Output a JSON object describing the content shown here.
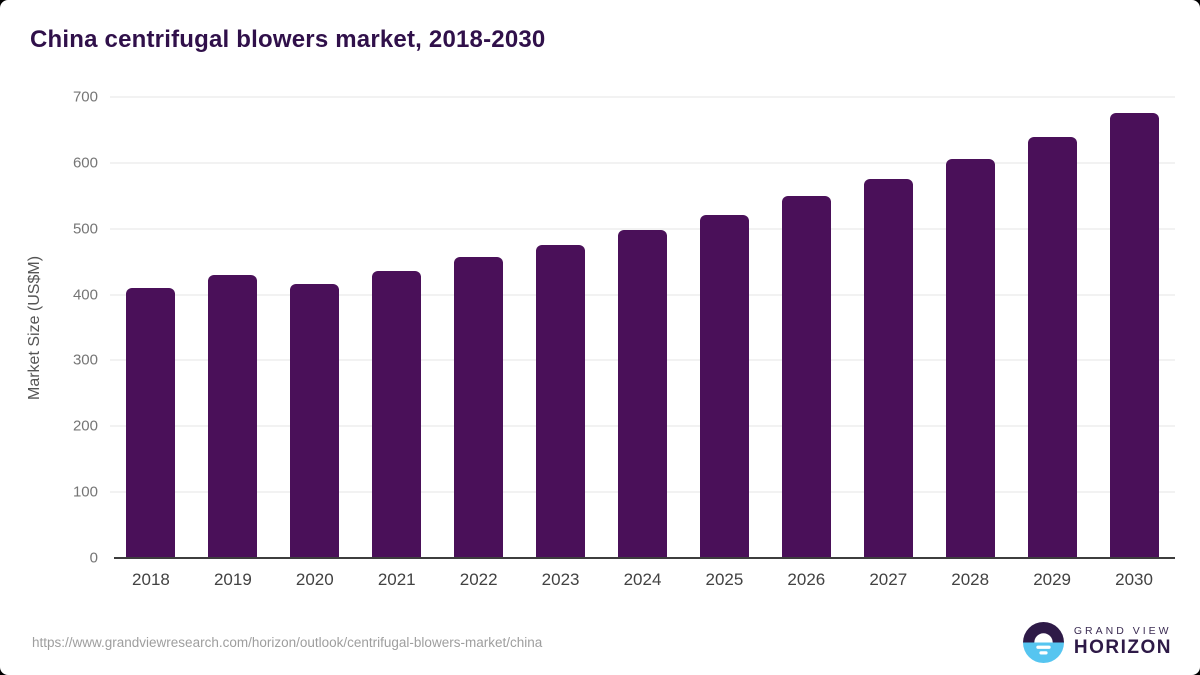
{
  "page": {
    "background_color": "#000000",
    "card_color": "#ffffff"
  },
  "header": {
    "title": "China centrifugal blowers market, 2018-2030",
    "title_color": "#30104a"
  },
  "chart_data": {
    "type": "bar",
    "title": "China centrifugal blowers market, 2018-2030",
    "categories": [
      "2018",
      "2019",
      "2020",
      "2021",
      "2022",
      "2023",
      "2024",
      "2025",
      "2026",
      "2027",
      "2028",
      "2029",
      "2030"
    ],
    "values": [
      410,
      430,
      416,
      436,
      457,
      476,
      498,
      521,
      549,
      575,
      606,
      640,
      675
    ],
    "xlabel": "",
    "ylabel": "Market Size (US$M)",
    "ylim": [
      0,
      700
    ],
    "yticks": [
      0,
      100,
      200,
      300,
      400,
      500,
      600,
      700
    ],
    "grid": true,
    "legend": false,
    "bar_color": "#4a1059",
    "gridline_color": "#e6e6e6",
    "axis_color": "#3d3d3d",
    "ytick_color": "#757575",
    "xtick_color": "#424242"
  },
  "footer": {
    "source_url": "https://www.grandviewresearch.com/horizon/outlook/centrifugal-blowers-market/china",
    "logo": {
      "line1": "GRAND VIEW",
      "line2": "HORIZON",
      "icon_purple": "#2e1a47",
      "icon_blue": "#56c5f0"
    }
  }
}
